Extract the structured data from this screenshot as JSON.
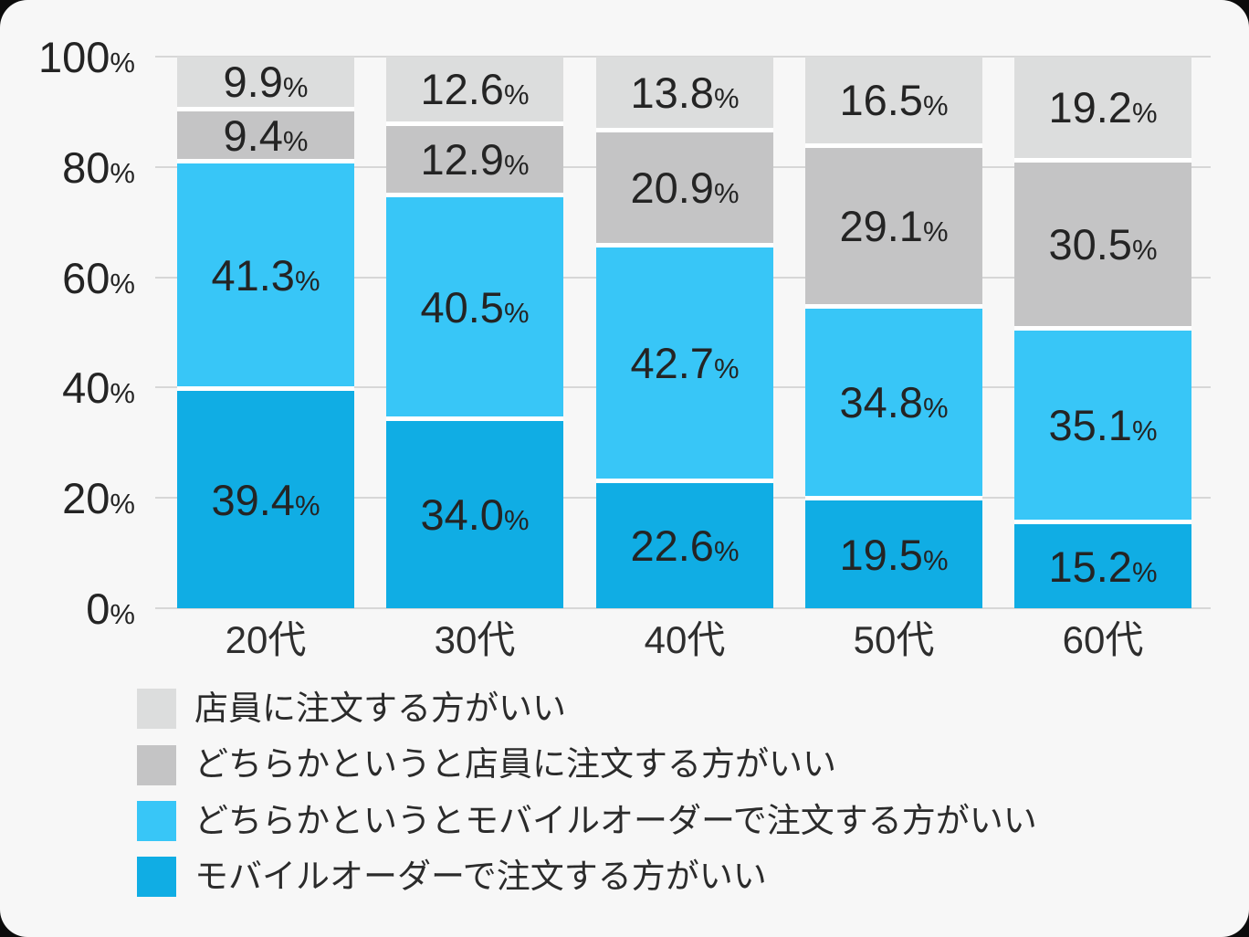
{
  "colors": {
    "background": "#f7f7f7",
    "outer_background": "#0c0c0c",
    "gridline": "#d7d7d7",
    "segment_gap": "#ffffff",
    "text": "#2e2e2e"
  },
  "chart_data": {
    "type": "bar",
    "variant": "stacked-100-percent-column",
    "title": "",
    "categories": [
      "20代",
      "30代",
      "40代",
      "50代",
      "60代"
    ],
    "series": [
      {
        "name": "モバイルオーダーで注文する方がいい",
        "color": "#10ade4",
        "values": [
          39.4,
          34.0,
          22.6,
          19.5,
          15.2
        ]
      },
      {
        "name": "どちらかというとモバイルオーダーで注文する方がいい",
        "color": "#38c6f7",
        "values": [
          41.3,
          40.5,
          42.7,
          34.8,
          35.1
        ]
      },
      {
        "name": "どちらかというと店員に注文する方がいい",
        "color": "#c4c4c5",
        "values": [
          9.4,
          12.9,
          20.9,
          29.1,
          30.5
        ]
      },
      {
        "name": "店員に注文する方がいい",
        "color": "#dcdddd",
        "values": [
          9.9,
          12.6,
          13.8,
          16.5,
          19.2
        ]
      }
    ],
    "stack_order": "bottom-to-top",
    "value_suffix": "%",
    "value_decimals": 1,
    "y_axis": {
      "min": 0,
      "max": 100,
      "ticks": [
        100,
        80,
        60,
        40,
        20,
        0
      ],
      "suffix": "%"
    },
    "grid": true,
    "legend": {
      "position": "bottom-left",
      "order": [
        "店員に注文する方がいい",
        "どちらかというと店員に注文する方がいい",
        "どちらかというとモバイルオーダーで注文する方がいい",
        "モバイルオーダーで注文する方がいい"
      ]
    }
  }
}
